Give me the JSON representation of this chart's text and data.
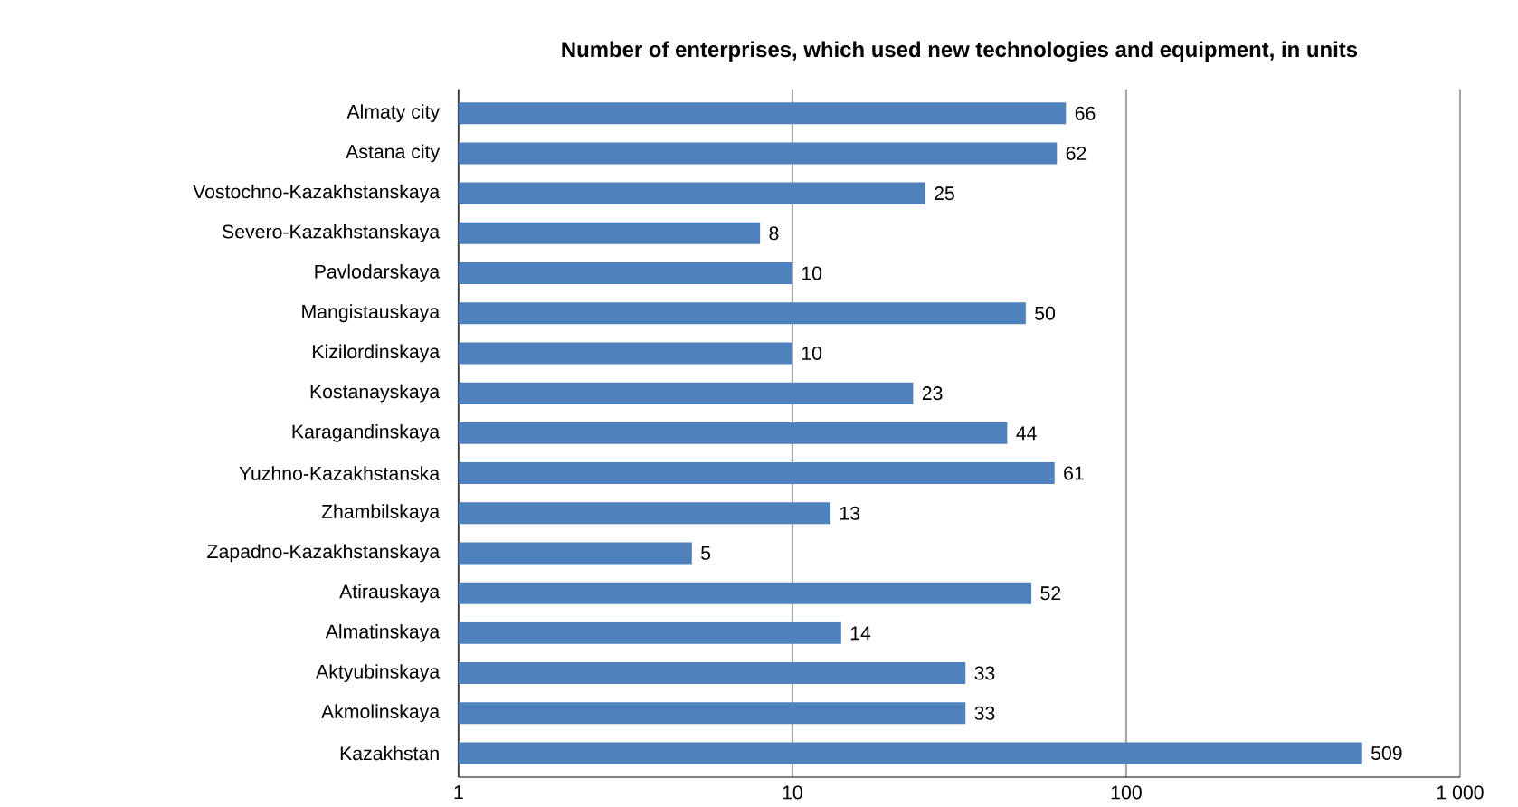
{
  "chart_data": {
    "type": "bar",
    "orientation": "horizontal",
    "title": "Number of enterprises, which used new technologies and equipment, in units",
    "categories": [
      "Almaty city",
      "Astana city",
      "Vostochno-Kazakhstanskaya",
      "Severo-Kazakhstanskaya",
      "Pavlodarskaya",
      "Mangistauskaya",
      "Kizilordinskaya",
      "Kostanayskaya",
      "Karagandinskaya",
      "Yuzhno-Kazakhstanska",
      "Zhambilskaya",
      "Zapadno-Kazakhstanskaya",
      "Atirauskaya",
      "Almatinskaya",
      "Aktyubinskaya",
      "Akmolinskaya",
      "Kazakhstan"
    ],
    "values": [
      66,
      62,
      25,
      8,
      10,
      50,
      10,
      23,
      44,
      61,
      13,
      5,
      52,
      14,
      33,
      33,
      509
    ],
    "value_labels": [
      "66",
      "62",
      "25",
      "8",
      "10",
      "50",
      "10",
      "23",
      "44",
      "61",
      "13",
      "5",
      "52",
      "14",
      "33",
      "33",
      "509"
    ],
    "color": "#4f81bd",
    "log": "x",
    "xlim": [
      1,
      1000
    ],
    "xticks": [
      1,
      10,
      100,
      {
        "value": 1000,
        "label": "1 000"
      }
    ],
    "grid": "x"
  }
}
